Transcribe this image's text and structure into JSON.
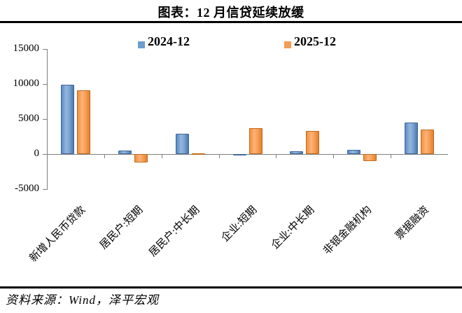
{
  "title": "图表：12 月信贷延续放缓",
  "legend": {
    "items": [
      {
        "label": "2024-12",
        "color": "#6d9ecb"
      },
      {
        "label": "2025-12",
        "color": "#f49d53"
      }
    ]
  },
  "footer": {
    "source": "资料来源：Wind，泽平宏观"
  },
  "colors": {
    "bar_blue": "#6d9ecb",
    "bar_orange": "#f49d53",
    "axis": "#7f7f7f",
    "rule": "#000000"
  },
  "chart_data": {
    "type": "bar",
    "title": "图表：12 月信贷延续放缓",
    "categories": [
      "新增人民币贷款",
      "居民户:短期",
      "居民户:中长期",
      "企业:短期",
      "企业:中长期",
      "非银金融机构",
      "票据融资"
    ],
    "series": [
      {
        "name": "2024-12",
        "color": "#6d9ecb",
        "values": [
          9900,
          500,
          2900,
          -150,
          400,
          600,
          4500
        ]
      },
      {
        "name": "2025-12",
        "color": "#f49d53",
        "values": [
          9100,
          -1150,
          50,
          3700,
          3300,
          -950,
          3500
        ]
      }
    ],
    "xlabel": "",
    "ylabel": "",
    "ylim": [
      -5000,
      15000
    ],
    "yticks": [
      15000,
      10000,
      5000,
      0,
      -5000
    ],
    "grid": false,
    "legend_position": "top"
  }
}
